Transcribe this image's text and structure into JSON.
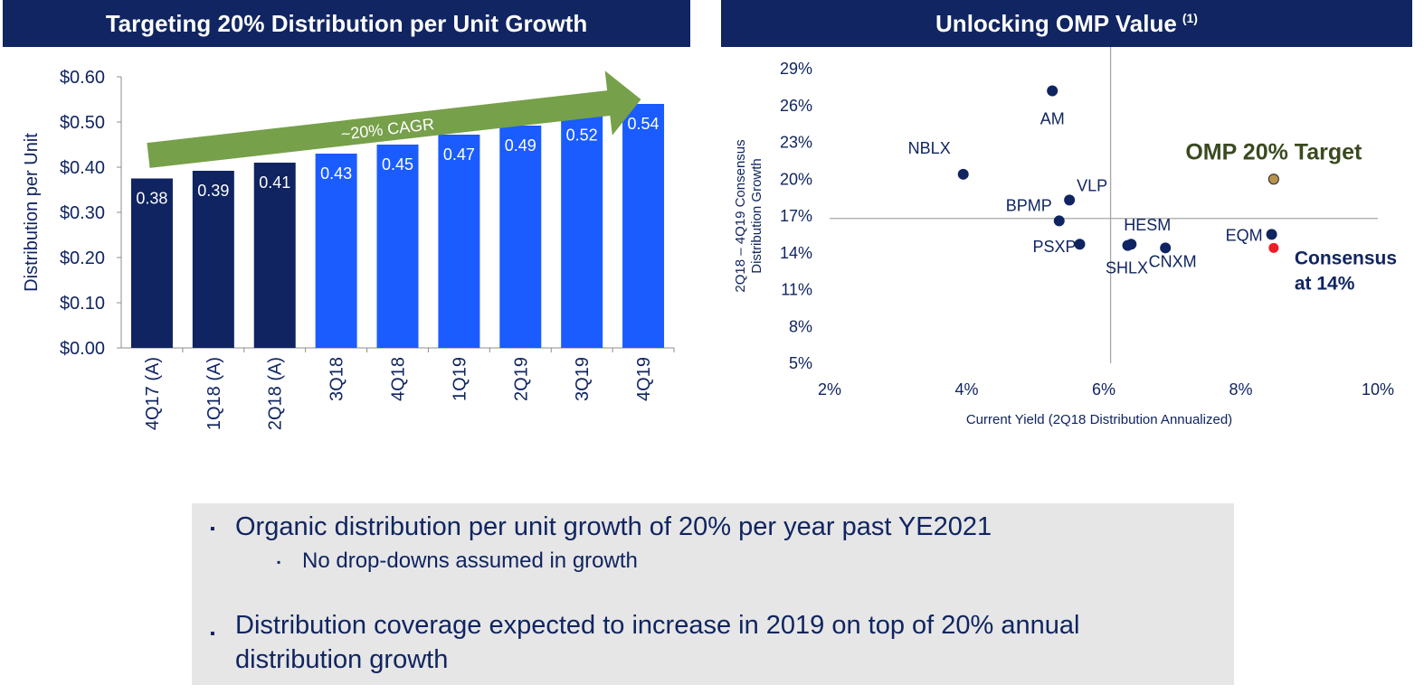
{
  "left_chart": {
    "header": "Targeting 20% Distribution per Unit Growth",
    "arrow_label": "~20% CAGR",
    "colors": {
      "actual": "#0f2460",
      "projected": "#1a5cff",
      "arrow": "#77a04a",
      "header": "#102561"
    }
  },
  "right_chart": {
    "header": "Unlocking OMP Value",
    "header_note": "(1)",
    "omp_target_label": "OMP 20% Target",
    "consensus_label_1": "Consensus",
    "consensus_label_2": "at 14%",
    "colors": {
      "points": "#0f2460",
      "omp": "#b8924a",
      "consensus": "#ee1c24",
      "target_text": "#3a4a20"
    }
  },
  "chart_data": [
    {
      "type": "bar",
      "title": "Targeting 20% Distribution per Unit Growth",
      "ylabel": "Distribution per Unit",
      "ylim": [
        0,
        0.6
      ],
      "yticks": [
        "$0.00",
        "$0.10",
        "$0.20",
        "$0.30",
        "$0.40",
        "$0.50",
        "$0.60"
      ],
      "ytick_values": [
        0,
        0.1,
        0.2,
        0.3,
        0.4,
        0.5,
        0.6
      ],
      "categories": [
        "4Q17 (A)",
        "1Q18 (A)",
        "2Q18 (A)",
        "3Q18",
        "4Q18",
        "1Q19",
        "2Q19",
        "3Q19",
        "4Q19"
      ],
      "values": [
        0.375,
        0.392,
        0.41,
        0.43,
        0.45,
        0.472,
        0.492,
        0.515,
        0.54
      ],
      "data_labels": [
        "0.38",
        "0.39",
        "0.41",
        "0.43",
        "0.45",
        "0.47",
        "0.49",
        "0.52",
        "0.54"
      ],
      "actual_flags": [
        true,
        true,
        true,
        false,
        false,
        false,
        false,
        false,
        false
      ],
      "annotation": "~20% CAGR",
      "grid": false,
      "legend": "none"
    },
    {
      "type": "scatter",
      "title": "Unlocking OMP Value",
      "xlabel": "Current Yield (2Q18 Distribution Annualized)",
      "ylabel": [
        "2Q18 – 4Q19 Consensus",
        "Distribution Growth"
      ],
      "xlim": [
        2,
        10
      ],
      "ylim": [
        5,
        29
      ],
      "xticks": [
        "2%",
        "4%",
        "6%",
        "8%",
        "10%"
      ],
      "xtick_values": [
        2,
        4,
        6,
        8,
        10
      ],
      "yticks": [
        "5%",
        "8%",
        "11%",
        "14%",
        "17%",
        "20%",
        "23%",
        "26%",
        "29%"
      ],
      "ytick_values": [
        5,
        8,
        11,
        14,
        17,
        20,
        23,
        26,
        29
      ],
      "reference_lines": {
        "x": 6.1,
        "y": 16.8
      },
      "points": [
        {
          "label": "AM",
          "x": 5.25,
          "y": 27.2
        },
        {
          "label": "NBLX",
          "x": 3.95,
          "y": 20.4
        },
        {
          "label": "VLP",
          "x": 5.5,
          "y": 18.3
        },
        {
          "label": "BPMP",
          "x": 5.35,
          "y": 16.6
        },
        {
          "label": "PSXP",
          "x": 5.65,
          "y": 14.7
        },
        {
          "label": "HESM",
          "x": 6.4,
          "y": 14.7
        },
        {
          "label": "SHLX",
          "x": 6.35,
          "y": 14.6
        },
        {
          "label": "CNXM",
          "x": 6.9,
          "y": 14.4
        },
        {
          "label": "EQM",
          "x": 8.45,
          "y": 15.5
        }
      ],
      "omp_target": {
        "x": 8.48,
        "y": 20
      },
      "consensus": {
        "x": 8.48,
        "y": 14.4
      },
      "grid": false,
      "legend": "none"
    }
  ],
  "bullets": {
    "b1": "Organic distribution per unit growth of 20% per year past YE2021",
    "b2": "No drop-downs assumed in growth",
    "b3_line1": "Distribution coverage expected to increase in 2019 on top of 20% annual",
    "b3_line2": "distribution growth",
    "marker": "▪"
  }
}
